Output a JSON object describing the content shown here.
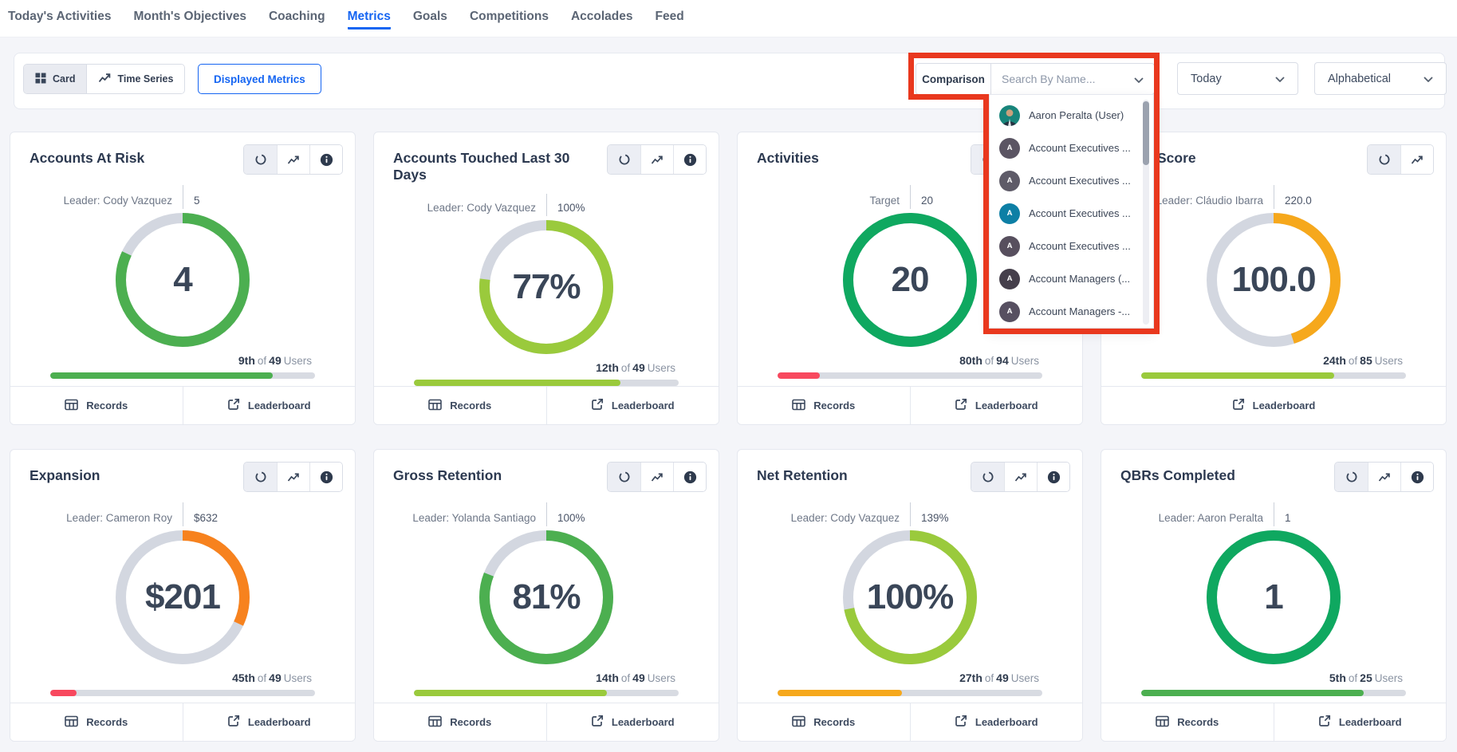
{
  "nav": {
    "items": [
      {
        "label": "Today's Activities",
        "active": false
      },
      {
        "label": "Month's Objectives",
        "active": false
      },
      {
        "label": "Coaching",
        "active": false
      },
      {
        "label": "Metrics",
        "active": true
      },
      {
        "label": "Goals",
        "active": false
      },
      {
        "label": "Competitions",
        "active": false
      },
      {
        "label": "Accolades",
        "active": false
      },
      {
        "label": "Feed",
        "active": false
      }
    ]
  },
  "toolbar": {
    "card_label": "Card",
    "time_series_label": "Time Series",
    "displayed_metrics_label": "Displayed Metrics",
    "comparison": {
      "label": "Comparison",
      "placeholder": "Search By Name..."
    },
    "date_filter_value": "Today",
    "sort_filter_value": "Alphabetical"
  },
  "annotation": {
    "color": "#e9381e"
  },
  "comparison_dropdown": {
    "items": [
      {
        "label": "Aaron Peralta (User)",
        "avatar_type": "photo",
        "avatar_color": "#18857b"
      },
      {
        "label": "Account Executives ...",
        "avatar_type": "letter",
        "letter": "A",
        "avatar_color": "#5b5563"
      },
      {
        "label": "Account Executives ...",
        "avatar_type": "letter",
        "letter": "A",
        "avatar_color": "#5e5b68"
      },
      {
        "label": "Account Executives ...",
        "avatar_type": "letter",
        "letter": "A",
        "avatar_color": "#0d7fa5"
      },
      {
        "label": "Account Executives ...",
        "avatar_type": "letter",
        "letter": "A",
        "avatar_color": "#574f5e"
      },
      {
        "label": "Account Managers (...",
        "avatar_type": "letter",
        "letter": "A",
        "avatar_color": "#453f4b"
      },
      {
        "label": "Account Managers -...",
        "avatar_type": "letter",
        "letter": "A",
        "avatar_color": "#575061"
      }
    ]
  },
  "card_labels": {
    "records": "Records",
    "leaderboard": "Leaderboard",
    "of": "of",
    "users": "Users"
  },
  "cards": [
    {
      "title": "Accounts At Risk",
      "title_indent": false,
      "leader_label": "Leader: Cody Vazquez",
      "leader_value": "5",
      "center_value": "4",
      "donut_pct": 82,
      "donut_color": "#4caf50",
      "rank": "9th",
      "total": "49",
      "bar_pct": 84,
      "bar_color": "#4caf50",
      "has_info": true,
      "has_records": true
    },
    {
      "title": "Accounts Touched Last 30 Days",
      "title_indent": false,
      "leader_label": "Leader: Cody Vazquez",
      "leader_value": "100%",
      "center_value": "77%",
      "donut_pct": 77,
      "donut_color": "#9aca3c",
      "rank": "12th",
      "total": "49",
      "bar_pct": 78,
      "bar_color": "#9aca3c",
      "has_info": true,
      "has_records": true
    },
    {
      "title": "Activities",
      "title_indent": false,
      "leader_label": "Target",
      "leader_value": "20",
      "center_value": "20",
      "donut_pct": 100,
      "donut_color": "#0fa860",
      "rank": "80th",
      "total": "94",
      "bar_pct": 16,
      "bar_color": "#f8485e",
      "has_info": true,
      "has_records": true
    },
    {
      "title": "Score",
      "title_indent": true,
      "leader_label": "Leader: Cláudio Ibarra",
      "leader_value": "220.0",
      "center_value": "100.0",
      "donut_pct": 45,
      "donut_color": "#f6a81c",
      "rank": "24th",
      "total": "85",
      "bar_pct": 73,
      "bar_color": "#9aca3c",
      "has_info": false,
      "has_records": false
    },
    {
      "title": "Expansion",
      "title_indent": false,
      "leader_label": "Leader: Cameron Roy",
      "leader_value": "$632",
      "center_value": "$201",
      "donut_pct": 32,
      "donut_color": "#f7821e",
      "rank": "45th",
      "total": "49",
      "bar_pct": 10,
      "bar_color": "#f8485e",
      "has_info": true,
      "has_records": true
    },
    {
      "title": "Gross Retention",
      "title_indent": false,
      "leader_label": "Leader: Yolanda Santiago",
      "leader_value": "100%",
      "center_value": "81%",
      "donut_pct": 81,
      "donut_color": "#4caf50",
      "rank": "14th",
      "total": "49",
      "bar_pct": 73,
      "bar_color": "#9aca3c",
      "has_info": true,
      "has_records": true
    },
    {
      "title": "Net Retention",
      "title_indent": false,
      "leader_label": "Leader: Cody Vazquez",
      "leader_value": "139%",
      "center_value": "100%",
      "donut_pct": 72,
      "donut_color": "#9aca3c",
      "rank": "27th",
      "total": "49",
      "bar_pct": 47,
      "bar_color": "#f6a81c",
      "has_info": true,
      "has_records": true
    },
    {
      "title": "QBRs Completed",
      "title_indent": false,
      "leader_label": "Leader: Aaron Peralta",
      "leader_value": "1",
      "center_value": "1",
      "donut_pct": 100,
      "donut_color": "#0fa860",
      "rank": "5th",
      "total": "25",
      "bar_pct": 84,
      "bar_color": "#4caf50",
      "has_info": true,
      "has_records": true
    }
  ]
}
